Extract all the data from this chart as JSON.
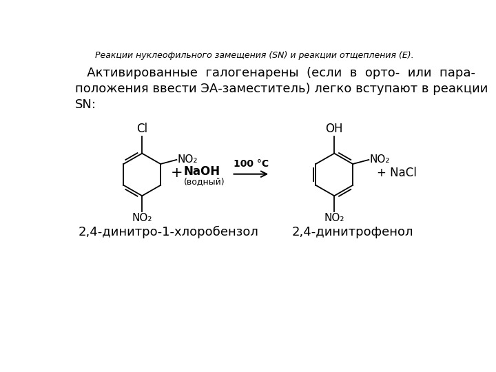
{
  "title": "Реакции нуклеофильного замещения (SN) и реакции отщепления (E).",
  "paragraph": "   Активированные  галогенарены  (если  в  орто-  или  пара-\nположения ввести ЭА-заместитель) легко вступают в реакции\nSN:",
  "label_left": "2,4-динитро-1-хлоробензол",
  "label_right": "2,4-динитрофенол",
  "bg_color": "#ffffff",
  "text_color": "#000000",
  "title_fontsize": 9,
  "body_fontsize": 13,
  "label_fontsize": 13
}
